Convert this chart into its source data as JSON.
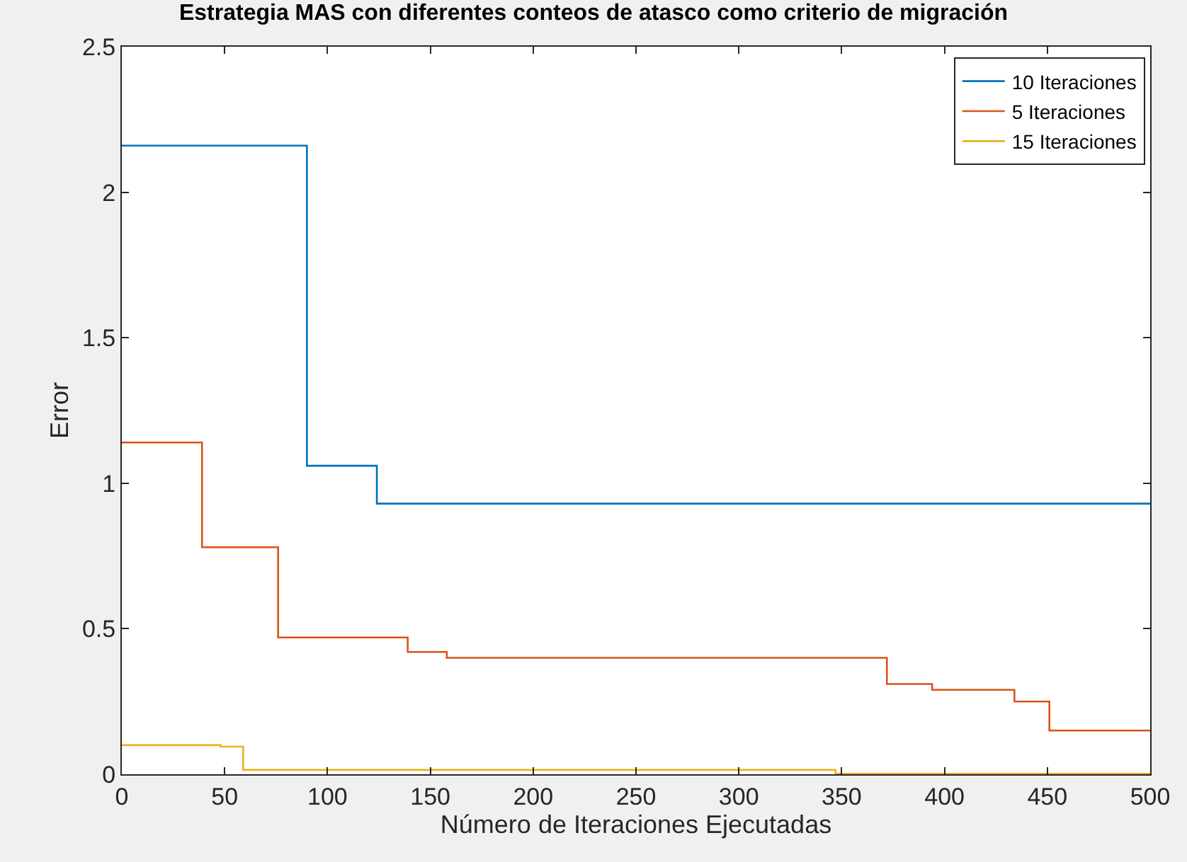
{
  "chart_data": {
    "type": "step",
    "title": "Estrategia MAS con diferentes conteos de atasco como criterio de migración",
    "xlabel": "Número de Iteraciones Ejecutadas",
    "ylabel": "Error",
    "xlim": [
      0,
      500
    ],
    "xticks": [
      0,
      50,
      100,
      150,
      200,
      250,
      300,
      350,
      400,
      450,
      500
    ],
    "ylim": [
      0,
      2.5
    ],
    "yticks": [
      0,
      0.5,
      1,
      1.5,
      2,
      2.5
    ],
    "legend": "top right",
    "marker": "none",
    "line_style": "solid",
    "series": [
      {
        "name": "10 Iteraciones",
        "color": "#0072bd",
        "x": [
          0,
          90,
          124,
          500
        ],
        "values": [
          2.16,
          1.06,
          0.93,
          0.93
        ]
      },
      {
        "name": "5 Iteraciones",
        "color": "#d95319",
        "x": [
          0,
          39,
          76,
          139,
          158,
          372,
          394,
          434,
          451,
          500
        ],
        "values": [
          1.14,
          0.78,
          0.47,
          0.42,
          0.4,
          0.31,
          0.29,
          0.25,
          0.15,
          0.15
        ]
      },
      {
        "name": "15 Iteraciones",
        "color": "#edb120",
        "x": [
          0,
          48,
          59,
          347,
          500
        ],
        "values": [
          0.1,
          0.095,
          0.015,
          0.002,
          0.002
        ]
      }
    ]
  }
}
